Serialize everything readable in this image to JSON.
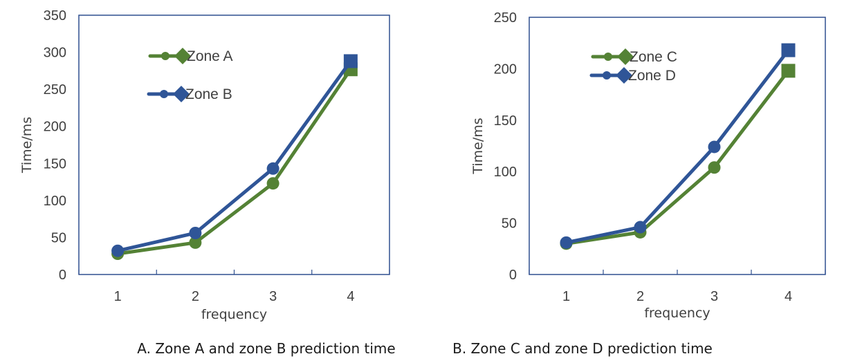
{
  "chart_data": [
    {
      "type": "line",
      "caption": "A. Zone A and zone B prediction time",
      "categories": [
        "1",
        "2",
        "3",
        "4"
      ],
      "x": [
        1,
        2,
        3,
        4
      ],
      "series": [
        {
          "name": "Zone A",
          "values": [
            28,
            43,
            123,
            277
          ],
          "color": "#548235"
        },
        {
          "name": "Zone B",
          "values": [
            32,
            56,
            143,
            288
          ],
          "color": "#2f5597"
        }
      ],
      "xlabel": "frequency",
      "ylabel": "Time/ms",
      "ylim": [
        0,
        350
      ],
      "yticks": [
        0,
        50,
        100,
        150,
        200,
        250,
        300,
        350
      ],
      "xlim": [
        0.5,
        4.5
      ],
      "grid": false,
      "legend_position": "top-left",
      "last_point_marker": "square"
    },
    {
      "type": "line",
      "caption": "B. Zone C and zone D prediction time",
      "categories": [
        "1",
        "2",
        "3",
        "4"
      ],
      "x": [
        1,
        2,
        3,
        4
      ],
      "series": [
        {
          "name": "Zone C",
          "values": [
            30,
            41,
            104,
            198
          ],
          "color": "#548235"
        },
        {
          "name": "Zone D",
          "values": [
            31,
            46,
            124,
            218
          ],
          "color": "#2f5597"
        }
      ],
      "xlabel": "frequency",
      "ylabel": "Time/ms",
      "ylim": [
        0,
        250
      ],
      "yticks": [
        0,
        50,
        100,
        150,
        200,
        250
      ],
      "xlim": [
        0.5,
        4.5
      ],
      "grid": false,
      "legend_position": "top-left",
      "last_point_marker": "square"
    }
  ]
}
